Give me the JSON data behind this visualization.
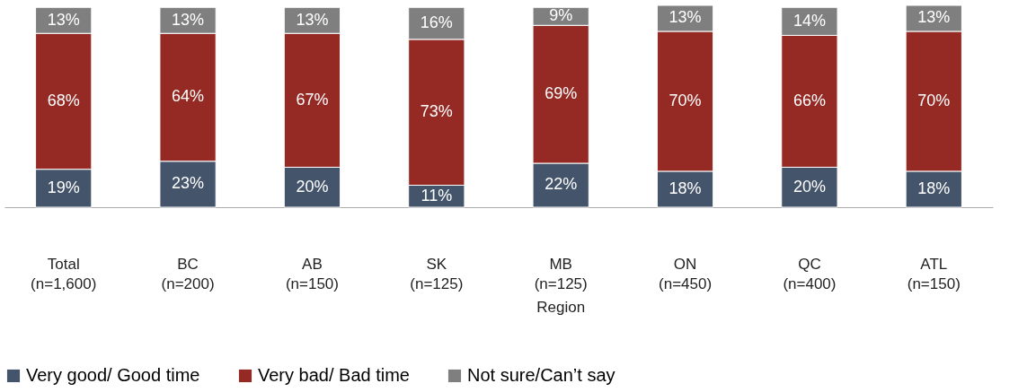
{
  "chart_data": {
    "type": "bar",
    "stacked": true,
    "legend": "bottom",
    "categories": [
      "Total\n(n=1,600)",
      "BC\n(n=200)",
      "AB\n(n=150)",
      "SK\n(n=125)",
      "MB\n(n=125)",
      "ON\n(n=450)",
      "QC\n(n=400)",
      "ATL\n(n=150)"
    ],
    "series": [
      {
        "name": "Very good/ Good time",
        "color": "#44546a",
        "values": [
          19,
          23,
          20,
          11,
          22,
          18,
          20,
          18
        ],
        "value_labels": [
          "19%",
          "23%",
          "20%",
          "11%",
          "22%",
          "18%",
          "20%",
          "18%"
        ]
      },
      {
        "name": "Very bad/ Bad time",
        "color": "#952a24",
        "values": [
          68,
          64,
          67,
          73,
          69,
          70,
          66,
          70
        ],
        "value_labels": [
          "68%",
          "64%",
          "67%",
          "73%",
          "69%",
          "70%",
          "66%",
          "70%"
        ]
      },
      {
        "name": "Not sure/Can’t say",
        "color": "#7f7f7f",
        "values": [
          13,
          13,
          13,
          16,
          9,
          13,
          14,
          13
        ],
        "value_labels": [
          "13%",
          "13%",
          "13%",
          "16%",
          "9%",
          "13%",
          "14%",
          "13%"
        ]
      }
    ],
    "annotations": [
      "Region"
    ]
  }
}
